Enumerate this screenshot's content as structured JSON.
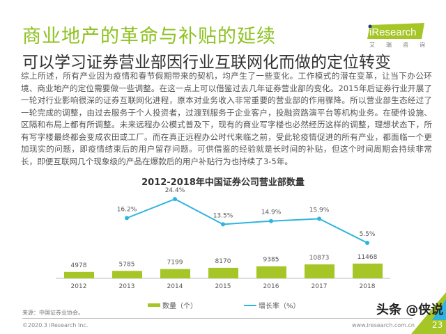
{
  "header": {
    "title": "商业地产的革命与补贴的延续",
    "subtitle": "可以学习证券营业部因行业互联网化而做的定位转变",
    "logo_text": "iResearch",
    "logo_sub": [
      "艾",
      "瑞",
      "咨",
      "询"
    ]
  },
  "body_text": "综上所述，所有产业因为疫情和春节假期带来的契机，均产生了一些变化。工作模式的潜在变革，让当下办公环境、商业地产的定位需要做一些调整。在这一点上可以借鉴过去几年证券营业部的变化。2015年后证券行业开展了一轮对行业影响很深的证券互联网化进程，原本对业务收入非常重要的营业部的作用骤降。所以营业部生态经过了一轮完成的调整，由过去服务于个人投资者，过渡到服务于企业客户，投融资路演平台等机构业务。在硬件设施、区隔和布局上都有所调整。未来远程办公模式普及下，现有的商业写字楼也必然经历这样的调整，理想状态下，所有写字楼最终都会变成农田或工厂。而在真正远程办公时代来临之前，受此轮疫情促进的所有产业，都面临一个更加现实的问题，即疫情结束后的用户留存问题。可供借鉴的经验就是长时间的补贴，但这个时间周期会持续非常长，即便互联网几个现象级的产品在爆款后的用户补贴行为也持续了3-5年。",
  "chart_data": {
    "type": "bar+line",
    "title": "2012-2018年中国证券公司营业部数量",
    "categories": [
      "2012",
      "2013",
      "2014",
      "2015",
      "2016",
      "2017",
      "2018"
    ],
    "series": [
      {
        "name": "数量（个）",
        "type": "bar",
        "values": [
          4978,
          5785,
          7199,
          8170,
          9385,
          10873,
          11468
        ],
        "labels": [
          "4978",
          "5785",
          "7199",
          "8170",
          "9385",
          "10873",
          "11468"
        ],
        "color": "#a5c626"
      },
      {
        "name": "增长率（%）",
        "type": "line",
        "values": [
          null,
          16.2,
          24.4,
          13.5,
          14.9,
          15.9,
          5.5
        ],
        "labels": [
          "",
          "16.2%",
          "24.4%",
          "13.5%",
          "14.9%",
          "15.9%",
          "5.5%"
        ],
        "color": "#2eb4de"
      }
    ],
    "legend": "bottom"
  },
  "footer": {
    "source": "来源：中国证券业协会。",
    "copyright": "©2020.3 iResearch Inc.",
    "website": "www.iresearch.com.cn",
    "page": "23",
    "watermark": "头条 @侠说"
  },
  "colors": {
    "accent": "#8dc21f",
    "bar": "#a5c626",
    "line": "#2eb4de"
  }
}
